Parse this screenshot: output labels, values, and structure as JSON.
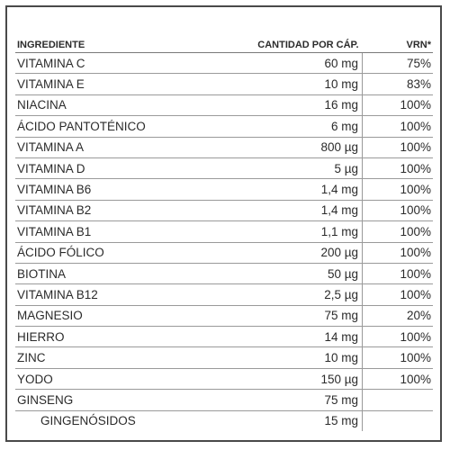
{
  "table": {
    "headers": [
      "INGREDIENTE",
      "CANTIDAD POR CÁP.",
      "VRN*"
    ],
    "rows": [
      {
        "ingredient": "VITAMINA C",
        "amount": "60 mg",
        "vrn": "75%"
      },
      {
        "ingredient": "VITAMINA E",
        "amount": "10 mg",
        "vrn": "83%"
      },
      {
        "ingredient": "NIACINA",
        "amount": "16 mg",
        "vrn": "100%"
      },
      {
        "ingredient": "ÁCIDO PANTOTÉNICO",
        "amount": "6 mg",
        "vrn": "100%"
      },
      {
        "ingredient": "VITAMINA A",
        "amount": "800 µg",
        "vrn": "100%"
      },
      {
        "ingredient": "VITAMINA D",
        "amount": "5 µg",
        "vrn": "100%"
      },
      {
        "ingredient": "VITAMINA B6",
        "amount": "1,4 mg",
        "vrn": "100%"
      },
      {
        "ingredient": "VITAMINA B2",
        "amount": "1,4 mg",
        "vrn": "100%"
      },
      {
        "ingredient": "VITAMINA B1",
        "amount": "1,1 mg",
        "vrn": "100%"
      },
      {
        "ingredient": "ÁCIDO FÓLICO",
        "amount": "200 µg",
        "vrn": "100%"
      },
      {
        "ingredient": "BIOTINA",
        "amount": "50 µg",
        "vrn": "100%"
      },
      {
        "ingredient": "VITAMINA B12",
        "amount": "2,5 µg",
        "vrn": "100%"
      },
      {
        "ingredient": "MAGNESIO",
        "amount": "75 mg",
        "vrn": "20%"
      },
      {
        "ingredient": "HIERRO",
        "amount": "14 mg",
        "vrn": "100%"
      },
      {
        "ingredient": "ZINC",
        "amount": "10 mg",
        "vrn": "100%"
      },
      {
        "ingredient": "YODO",
        "amount": "150 µg",
        "vrn": "100%"
      },
      {
        "ingredient": "GINSENG",
        "amount": "75 mg",
        "vrn": ""
      },
      {
        "ingredient": "GINGENÓSIDOS",
        "amount": "15 mg",
        "vrn": "",
        "indented": true
      }
    ]
  }
}
